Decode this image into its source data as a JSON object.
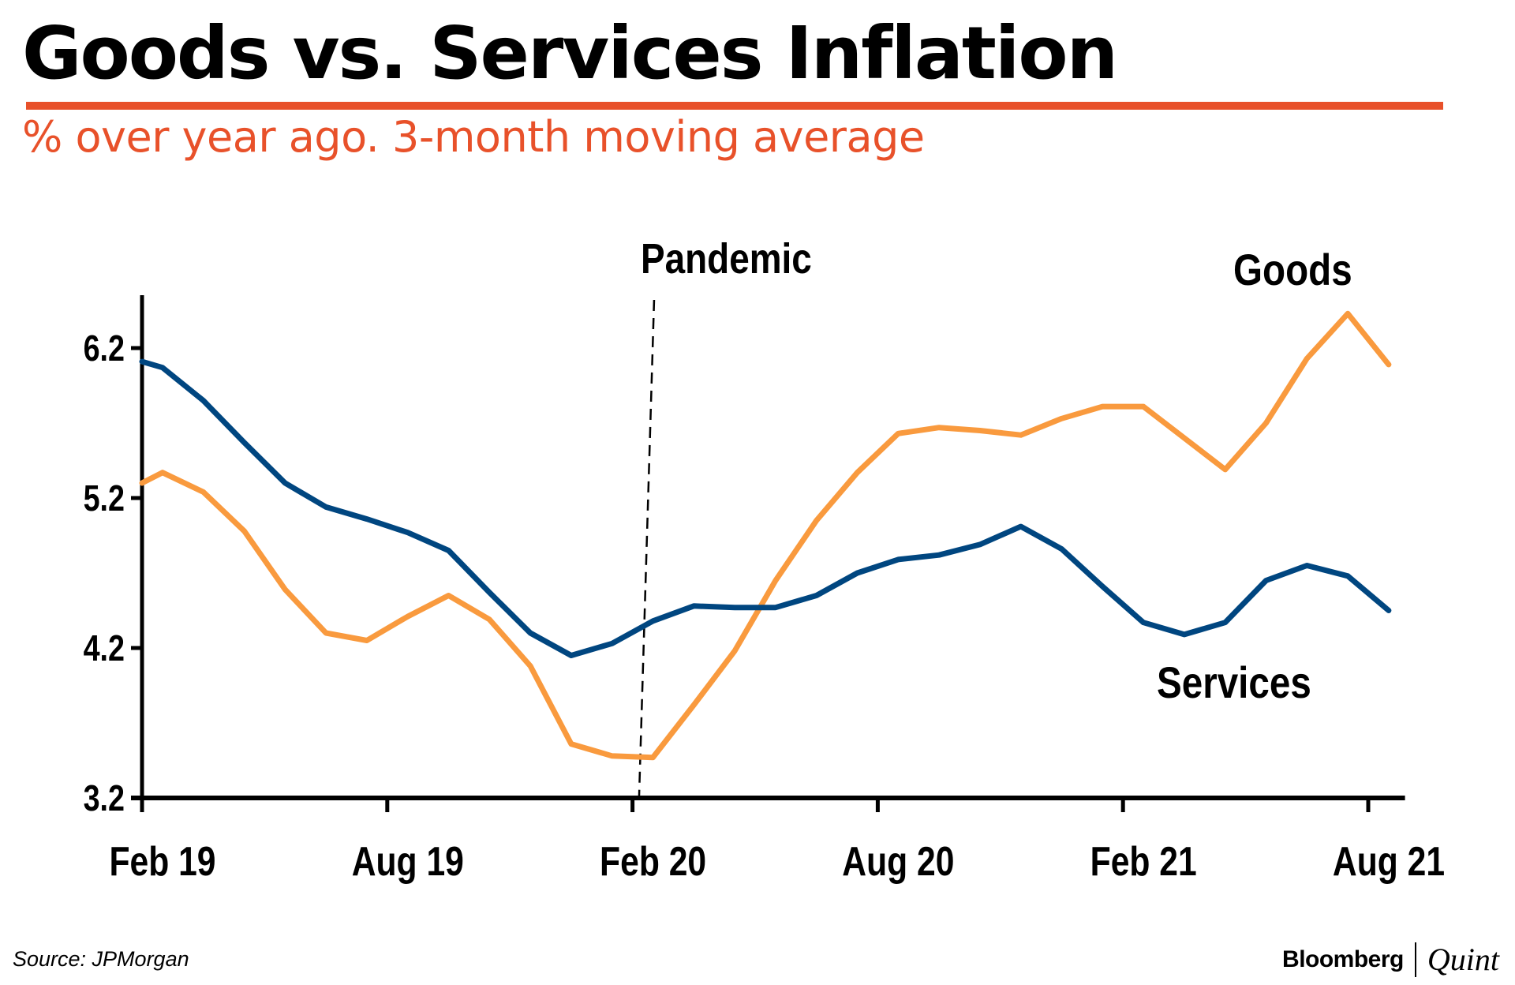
{
  "header": {
    "title": "Goods vs. Services Inflation",
    "subtitle": "% over year ago. 3-month moving average",
    "accent_color": "#e8512a"
  },
  "footer": {
    "source": "Source: JPMorgan",
    "brand_primary": "Bloomberg",
    "brand_secondary": "Quint"
  },
  "chart_data": {
    "type": "line",
    "title": "Goods vs. Services Inflation",
    "subtitle": "% over year ago. 3-month moving average",
    "xlabel": "",
    "ylabel": "",
    "x_unit": "months since Feb 2019",
    "x": [
      0,
      0.5,
      1.5,
      2.5,
      3.5,
      4.5,
      5.5,
      6.5,
      7.5,
      8.5,
      9.5,
      10.5,
      11.5,
      12.5,
      13.5,
      14.5,
      15.5,
      16.5,
      17.5,
      18.5,
      19.5,
      20.5,
      21.5,
      22.5,
      23.5,
      24.5,
      25.5,
      26.5,
      27.5,
      28.5,
      29.5,
      30.5
    ],
    "xlim": [
      0,
      30.9
    ],
    "x_ticks": [
      {
        "pos": 0,
        "label": "Feb 19"
      },
      {
        "pos": 6,
        "label": "Aug 19"
      },
      {
        "pos": 12,
        "label": "Feb 20"
      },
      {
        "pos": 18,
        "label": "Aug 20"
      },
      {
        "pos": 24,
        "label": "Feb 21"
      },
      {
        "pos": 30,
        "label": "Aug 21"
      }
    ],
    "ylim": [
      3.2,
      6.5
    ],
    "y_ticks": [
      3.2,
      4.2,
      5.2,
      6.2
    ],
    "y_tick_labels": [
      "3.2",
      "4.2",
      "5.2",
      "6.2"
    ],
    "grid": false,
    "series": [
      {
        "name": "Goods",
        "color": "#f99a3e",
        "label_position": "top-right",
        "values": [
          5.3,
          5.37,
          5.24,
          4.98,
          4.59,
          4.3,
          4.25,
          4.41,
          4.55,
          4.39,
          4.08,
          3.56,
          3.48,
          3.47,
          3.82,
          4.18,
          4.65,
          5.05,
          5.37,
          5.63,
          5.67,
          5.65,
          5.62,
          5.73,
          5.81,
          5.81,
          5.6,
          5.39,
          5.7,
          6.13,
          6.43,
          6.09
        ]
      },
      {
        "name": "Services",
        "color": "#004680",
        "label_position": "bottom-right",
        "values": [
          6.11,
          6.07,
          5.85,
          5.57,
          5.3,
          5.14,
          5.06,
          4.97,
          4.85,
          4.57,
          4.3,
          4.15,
          4.23,
          4.38,
          4.48,
          4.47,
          4.47,
          4.55,
          4.7,
          4.79,
          4.82,
          4.89,
          5.01,
          4.86,
          4.61,
          4.37,
          4.29,
          4.37,
          4.65,
          4.75,
          4.68,
          4.45
        ]
      }
    ],
    "annotations": [
      {
        "text": "Pandemic",
        "type": "vertical-dashed-line",
        "x": 12.2
      },
      {
        "text": "Goods",
        "series": "Goods"
      },
      {
        "text": "Services",
        "series": "Services"
      }
    ]
  }
}
